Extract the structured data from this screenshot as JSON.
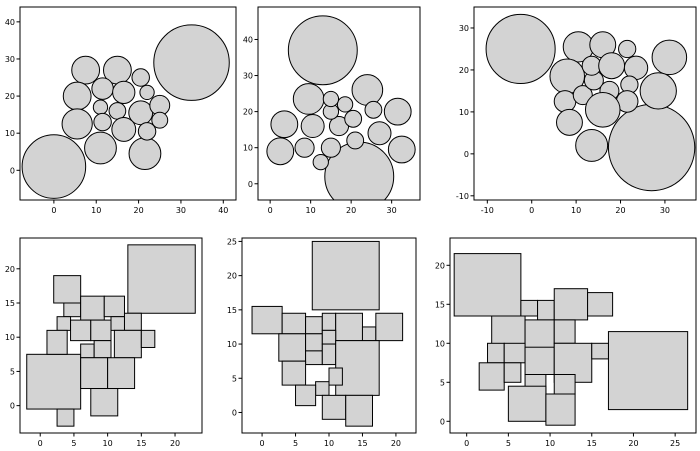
{
  "chart_data": [
    {
      "type": "scatter",
      "shape": "circle",
      "xlim": [
        -8,
        43
      ],
      "ylim": [
        -8,
        44
      ],
      "xticks": [
        0,
        10,
        20,
        30,
        40
      ],
      "yticks": [
        0,
        10,
        20,
        30,
        40
      ],
      "items": [
        {
          "x": 0,
          "y": 1,
          "r": 8
        },
        {
          "x": 32.5,
          "y": 29,
          "r": 9.5
        },
        {
          "x": 21.5,
          "y": 4.5,
          "r": 4
        },
        {
          "x": 11,
          "y": 6,
          "r": 4
        },
        {
          "x": 7.5,
          "y": 27,
          "r": 3.5
        },
        {
          "x": 15,
          "y": 27,
          "r": 3.5
        },
        {
          "x": 5.5,
          "y": 20,
          "r": 3.5
        },
        {
          "x": 5.5,
          "y": 12.5,
          "r": 3.8
        },
        {
          "x": 11.5,
          "y": 22,
          "r": 2.7
        },
        {
          "x": 16.5,
          "y": 21,
          "r": 2.8
        },
        {
          "x": 20.5,
          "y": 25,
          "r": 2.2
        },
        {
          "x": 22,
          "y": 21,
          "r": 1.8
        },
        {
          "x": 11,
          "y": 17,
          "r": 1.8
        },
        {
          "x": 15,
          "y": 16,
          "r": 2.1
        },
        {
          "x": 20.5,
          "y": 15.5,
          "r": 3
        },
        {
          "x": 25,
          "y": 17.5,
          "r": 2.5
        },
        {
          "x": 11.5,
          "y": 13,
          "r": 2.2
        },
        {
          "x": 16.5,
          "y": 11,
          "r": 3
        },
        {
          "x": 22,
          "y": 10.5,
          "r": 2.2
        },
        {
          "x": 25,
          "y": 13.5,
          "r": 2
        }
      ]
    },
    {
      "type": "scatter",
      "shape": "circle",
      "xlim": [
        -3,
        37
      ],
      "ylim": [
        -4.5,
        49
      ],
      "xticks": [
        0,
        10,
        20,
        30
      ],
      "yticks": [
        0,
        10,
        20,
        30,
        40
      ],
      "items": [
        {
          "x": 13,
          "y": 37,
          "r": 9
        },
        {
          "x": 22,
          "y": 2,
          "r": 9
        },
        {
          "x": 9.5,
          "y": 23.5,
          "r": 4
        },
        {
          "x": 24,
          "y": 26,
          "r": 4
        },
        {
          "x": 3.5,
          "y": 16.5,
          "r": 3.5
        },
        {
          "x": 2.5,
          "y": 9,
          "r": 3.5
        },
        {
          "x": 31.5,
          "y": 20,
          "r": 3.5
        },
        {
          "x": 32.5,
          "y": 9.5,
          "r": 3.5
        },
        {
          "x": 10.5,
          "y": 16,
          "r": 3
        },
        {
          "x": 27,
          "y": 14,
          "r": 3
        },
        {
          "x": 17,
          "y": 16,
          "r": 2.5
        },
        {
          "x": 8.5,
          "y": 10,
          "r": 2.5
        },
        {
          "x": 15,
          "y": 10,
          "r": 2.5
        },
        {
          "x": 21,
          "y": 12,
          "r": 2.2
        },
        {
          "x": 20.5,
          "y": 18,
          "r": 2.2
        },
        {
          "x": 25.5,
          "y": 20.5,
          "r": 2.2
        },
        {
          "x": 15,
          "y": 20,
          "r": 2
        },
        {
          "x": 18.5,
          "y": 22,
          "r": 2
        },
        {
          "x": 15,
          "y": 23.5,
          "r": 2
        },
        {
          "x": 12.5,
          "y": 6,
          "r": 2
        }
      ]
    },
    {
      "type": "scatter",
      "shape": "circle",
      "xlim": [
        -13,
        37
      ],
      "ylim": [
        -11,
        35
      ],
      "xticks": [
        -10,
        0,
        10,
        20,
        30
      ],
      "yticks": [
        -10,
        0,
        10,
        20,
        30
      ],
      "items": [
        {
          "x": -2.5,
          "y": 25,
          "r": 8
        },
        {
          "x": 27,
          "y": 1.5,
          "r": 10
        },
        {
          "x": 10.5,
          "y": 25.5,
          "r": 3.5
        },
        {
          "x": 16,
          "y": 26,
          "r": 3
        },
        {
          "x": 8,
          "y": 18.5,
          "r": 4
        },
        {
          "x": 7.5,
          "y": 12.5,
          "r": 2.5
        },
        {
          "x": 11.5,
          "y": 14,
          "r": 2.2
        },
        {
          "x": 14,
          "y": 17.5,
          "r": 2.2
        },
        {
          "x": 13.5,
          "y": 21,
          "r": 2.2
        },
        {
          "x": 18,
          "y": 21,
          "r": 3
        },
        {
          "x": 17.5,
          "y": 15,
          "r": 2.2
        },
        {
          "x": 21.5,
          "y": 25,
          "r": 2
        },
        {
          "x": 23.5,
          "y": 20.5,
          "r": 2.7
        },
        {
          "x": 22,
          "y": 16.5,
          "r": 2
        },
        {
          "x": 21.5,
          "y": 12.5,
          "r": 2.5
        },
        {
          "x": 31,
          "y": 23,
          "r": 4
        },
        {
          "x": 28.5,
          "y": 15,
          "r": 4.2
        },
        {
          "x": 16,
          "y": 10.5,
          "r": 4
        },
        {
          "x": 8.5,
          "y": 7.5,
          "r": 3
        },
        {
          "x": 13.5,
          "y": 2,
          "r": 3.7
        }
      ]
    },
    {
      "type": "scatter",
      "shape": "square",
      "xlim": [
        -3,
        24
      ],
      "ylim": [
        -4,
        24.5
      ],
      "xticks": [
        0,
        5,
        10,
        15,
        20
      ],
      "yticks": [
        0,
        5,
        10,
        15,
        20
      ],
      "items": [
        {
          "x0": 13,
          "x1": 23,
          "y0": 13.5,
          "y1": 23.5
        },
        {
          "x0": -2,
          "x1": 6,
          "y0": -0.5,
          "y1": 7.5
        },
        {
          "x0": 2,
          "x1": 6,
          "y0": 15,
          "y1": 19
        },
        {
          "x0": 3.5,
          "x1": 6,
          "y0": 13,
          "y1": 15
        },
        {
          "x0": 6,
          "x1": 9.5,
          "y0": 12.5,
          "y1": 16
        },
        {
          "x0": 9.5,
          "x1": 12.5,
          "y0": 13,
          "y1": 16
        },
        {
          "x0": 2.5,
          "x1": 4.5,
          "y0": 11,
          "y1": 13
        },
        {
          "x0": 4.5,
          "x1": 7.5,
          "y0": 9.5,
          "y1": 12.5
        },
        {
          "x0": 7.5,
          "x1": 10.5,
          "y0": 9.5,
          "y1": 12.5
        },
        {
          "x0": 10.5,
          "x1": 12.5,
          "y0": 11,
          "y1": 13
        },
        {
          "x0": 12.5,
          "x1": 15,
          "y0": 11,
          "y1": 13.5
        },
        {
          "x0": 1,
          "x1": 4,
          "y0": 7.5,
          "y1": 11
        },
        {
          "x0": 11,
          "x1": 15,
          "y0": 7,
          "y1": 11
        },
        {
          "x0": 6,
          "x1": 8,
          "y0": 7,
          "y1": 9
        },
        {
          "x0": 8,
          "x1": 10.5,
          "y0": 7,
          "y1": 9.5
        },
        {
          "x0": 15,
          "x1": 17,
          "y0": 8.5,
          "y1": 11
        },
        {
          "x0": 6,
          "x1": 10,
          "y0": 2.5,
          "y1": 7
        },
        {
          "x0": 10,
          "x1": 14,
          "y0": 2.5,
          "y1": 7
        },
        {
          "x0": 7.5,
          "x1": 11.5,
          "y0": -1.5,
          "y1": 2.5
        },
        {
          "x0": 2.5,
          "x1": 5,
          "y0": -3,
          "y1": -0.5
        }
      ]
    },
    {
      "type": "scatter",
      "shape": "square",
      "xlim": [
        -3,
        23
      ],
      "ylim": [
        -3,
        25.5
      ],
      "xticks": [
        0,
        5,
        10,
        15,
        20
      ],
      "yticks": [
        0,
        5,
        10,
        15,
        20,
        25
      ],
      "items": [
        {
          "x0": 7.5,
          "x1": 17.5,
          "y0": 15,
          "y1": 25
        },
        {
          "x0": -1.5,
          "x1": 3,
          "y0": 11.5,
          "y1": 15.5
        },
        {
          "x0": 3,
          "x1": 6.5,
          "y0": 11.5,
          "y1": 14.5
        },
        {
          "x0": 6.5,
          "x1": 9,
          "y0": 11.5,
          "y1": 14
        },
        {
          "x0": 9,
          "x1": 11,
          "y0": 12,
          "y1": 14.5
        },
        {
          "x0": 11,
          "x1": 15,
          "y0": 10.5,
          "y1": 14.5
        },
        {
          "x0": 15,
          "x1": 17,
          "y0": 10.5,
          "y1": 12.5
        },
        {
          "x0": 17,
          "x1": 21,
          "y0": 10.5,
          "y1": 14.5
        },
        {
          "x0": 2.5,
          "x1": 6.5,
          "y0": 7.5,
          "y1": 11.5
        },
        {
          "x0": 6.5,
          "x1": 9,
          "y0": 9,
          "y1": 11.5
        },
        {
          "x0": 9,
          "x1": 11,
          "y0": 10,
          "y1": 12
        },
        {
          "x0": 6.5,
          "x1": 9,
          "y0": 7,
          "y1": 9
        },
        {
          "x0": 9,
          "x1": 11,
          "y0": 7,
          "y1": 10
        },
        {
          "x0": 11,
          "x1": 17.5,
          "y0": 2.5,
          "y1": 10.5
        },
        {
          "x0": 3,
          "x1": 6.5,
          "y0": 4,
          "y1": 7.5
        },
        {
          "x0": 8,
          "x1": 10,
          "y0": 2.5,
          "y1": 4.5
        },
        {
          "x0": 10,
          "x1": 12,
          "y0": 4,
          "y1": 6.5
        },
        {
          "x0": 5,
          "x1": 8,
          "y0": 1,
          "y1": 4
        },
        {
          "x0": 9,
          "x1": 12.5,
          "y0": -1,
          "y1": 2.5
        },
        {
          "x0": 12.5,
          "x1": 16.5,
          "y0": -2,
          "y1": 2.5
        }
      ]
    },
    {
      "type": "scatter",
      "shape": "square",
      "xlim": [
        -2,
        27.5
      ],
      "ylim": [
        -1.5,
        23.5
      ],
      "xticks": [
        0,
        5,
        10,
        15,
        20,
        25
      ],
      "yticks": [
        0,
        5,
        10,
        15,
        20
      ],
      "items": [
        {
          "x0": -1.5,
          "x1": 6.5,
          "y0": 13.5,
          "y1": 21.5
        },
        {
          "x0": 17,
          "x1": 26.5,
          "y0": 1.5,
          "y1": 11.5
        },
        {
          "x0": 6.5,
          "x1": 8.5,
          "y0": 13.5,
          "y1": 15.5
        },
        {
          "x0": 8.5,
          "x1": 10.5,
          "y0": 13,
          "y1": 15.5
        },
        {
          "x0": 10.5,
          "x1": 14.5,
          "y0": 13,
          "y1": 17
        },
        {
          "x0": 14.5,
          "x1": 17.5,
          "y0": 13.5,
          "y1": 16.5
        },
        {
          "x0": 3,
          "x1": 7,
          "y0": 9.5,
          "y1": 13.5
        },
        {
          "x0": 7,
          "x1": 10.5,
          "y0": 9,
          "y1": 13
        },
        {
          "x0": 10.5,
          "x1": 13,
          "y0": 10,
          "y1": 13
        },
        {
          "x0": 2.5,
          "x1": 4.5,
          "y0": 7.5,
          "y1": 10
        },
        {
          "x0": 4.5,
          "x1": 7,
          "y0": 7.5,
          "y1": 10
        },
        {
          "x0": 7,
          "x1": 10.5,
          "y0": 6,
          "y1": 9.5
        },
        {
          "x0": 10.5,
          "x1": 15,
          "y0": 5,
          "y1": 10
        },
        {
          "x0": 15,
          "x1": 17,
          "y0": 8,
          "y1": 10
        },
        {
          "x0": 1.5,
          "x1": 4.5,
          "y0": 4,
          "y1": 7.5
        },
        {
          "x0": 4.5,
          "x1": 6.5,
          "y0": 5,
          "y1": 7.5
        },
        {
          "x0": 7,
          "x1": 9.5,
          "y0": 3.5,
          "y1": 6
        },
        {
          "x0": 10.5,
          "x1": 13,
          "y0": 3.5,
          "y1": 6
        },
        {
          "x0": 5,
          "x1": 9.5,
          "y0": 0,
          "y1": 4.5
        },
        {
          "x0": 9.5,
          "x1": 13,
          "y0": -0.5,
          "y1": 3.5
        }
      ]
    }
  ]
}
